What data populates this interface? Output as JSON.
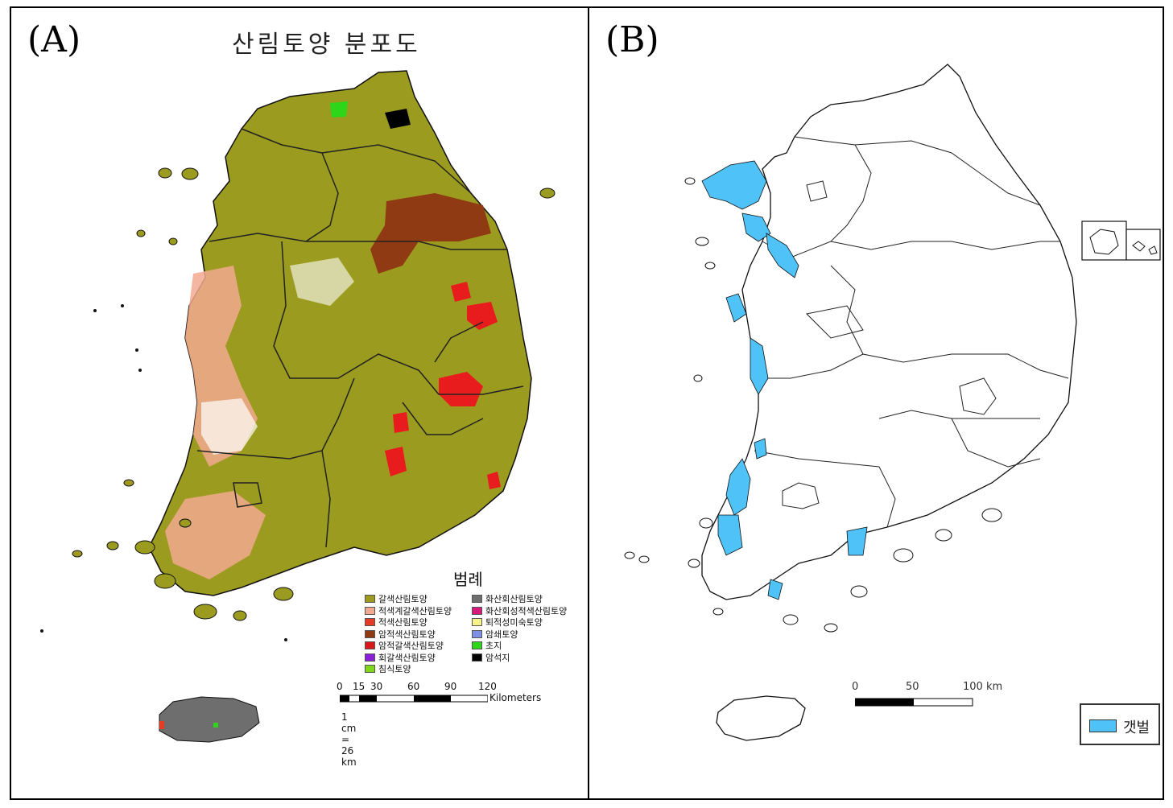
{
  "panel_a": {
    "label": "(A)",
    "title": "산림토양 분포도",
    "legend_title": "범례",
    "legend_items_col1": [
      {
        "label": "갈색산림토양",
        "color": "#9b9b1f"
      },
      {
        "label": "적색계갈색산림토양",
        "color": "#f2a98f"
      },
      {
        "label": "적색산림토양",
        "color": "#e63b25"
      },
      {
        "label": "암적색산림토양",
        "color": "#8f3a13"
      },
      {
        "label": "암적갈색산림토양",
        "color": "#d61a1a"
      },
      {
        "label": "회갈색산림토양",
        "color": "#8a1fd6"
      },
      {
        "label": "침식토양",
        "color": "#7fd61a"
      }
    ],
    "legend_items_col2": [
      {
        "label": "화산회산림토양",
        "color": "#6e6e6e"
      },
      {
        "label": "화산회성적색산림토양",
        "color": "#d6197a"
      },
      {
        "label": "퇴적성미숙토양",
        "color": "#f5f28a"
      },
      {
        "label": "암쇄토양",
        "color": "#7f8fe6"
      },
      {
        "label": "초지",
        "color": "#2ed61a"
      },
      {
        "label": "암석지",
        "color": "#000000"
      }
    ],
    "scale_ticks": [
      "0",
      "15",
      "30",
      "60",
      "90",
      "120"
    ],
    "scale_unit": "Kilometers",
    "scale_ratio": "1 cm = 26 km"
  },
  "panel_b": {
    "label": "(B)",
    "scale_ticks": [
      "0",
      "50",
      "100 km"
    ],
    "legend_label": "갯벌",
    "legend_color": "#4fc3f7"
  }
}
